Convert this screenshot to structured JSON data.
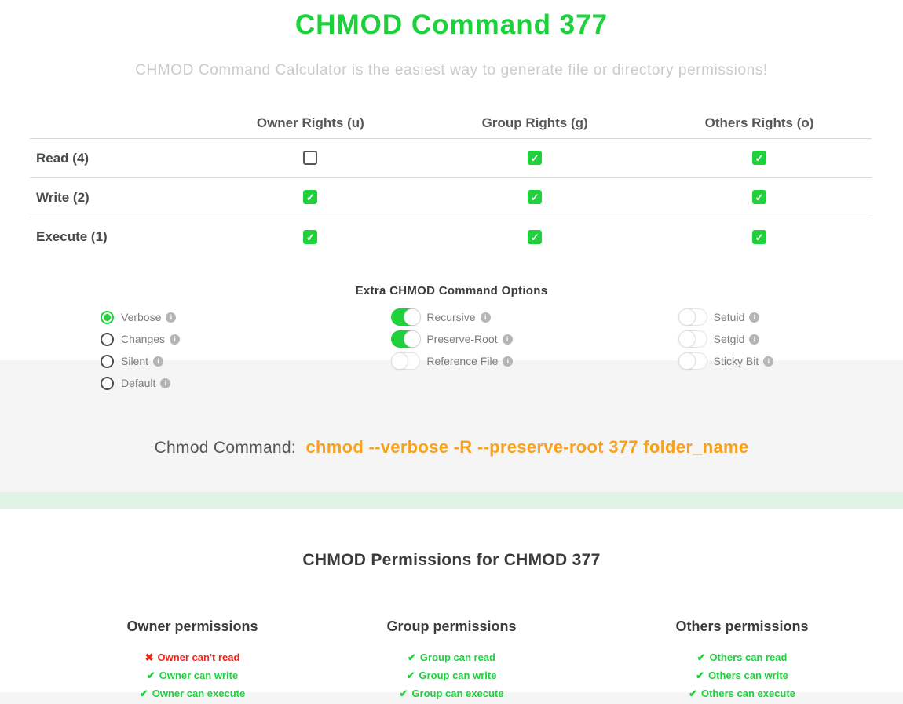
{
  "page": {
    "title": "CHMOD Command 377",
    "subtitle": "CHMOD Command Calculator is the easiest way to generate file or directory permissions!"
  },
  "colors": {
    "accent_green": "#1fd23c",
    "command_orange": "#f9a11b",
    "denied_red": "#f0261a",
    "section_gray": "#f4f5f4",
    "section_light_green": "#e1f3e6"
  },
  "icons": {
    "check": "✔",
    "cross": "✖",
    "info": "i",
    "checkbox_check": "✓"
  },
  "permissions_table": {
    "columns": [
      "Owner Rights (u)",
      "Group Rights (g)",
      "Others Rights (o)"
    ],
    "rows": [
      {
        "label": "Read (4)",
        "owner": false,
        "group": true,
        "others": true
      },
      {
        "label": "Write (2)",
        "owner": true,
        "group": true,
        "others": true
      },
      {
        "label": "Execute (1)",
        "owner": true,
        "group": true,
        "others": true
      }
    ]
  },
  "options": {
    "heading": "Extra CHMOD Command Options",
    "radio_group": [
      {
        "label": "Verbose",
        "selected": true
      },
      {
        "label": "Changes",
        "selected": false
      },
      {
        "label": "Silent",
        "selected": false
      },
      {
        "label": "Default",
        "selected": false
      }
    ],
    "toggles_middle": [
      {
        "label": "Recursive",
        "on": true
      },
      {
        "label": "Preserve-Root",
        "on": true
      },
      {
        "label": "Reference File",
        "on": false
      }
    ],
    "toggles_right": [
      {
        "label": "Setuid",
        "on": false
      },
      {
        "label": "Setgid",
        "on": false
      },
      {
        "label": "Sticky Bit",
        "on": false
      }
    ]
  },
  "command": {
    "label": "Chmod Command:",
    "value": "chmod --verbose -R --preserve-root 377 folder_name"
  },
  "result": {
    "heading": "CHMOD Permissions for CHMOD 377",
    "groups": [
      {
        "title": "Owner permissions",
        "items": [
          {
            "text": "Owner can't read",
            "allowed": false
          },
          {
            "text": "Owner can write",
            "allowed": true
          },
          {
            "text": "Owner can execute",
            "allowed": true
          }
        ]
      },
      {
        "title": "Group permissions",
        "items": [
          {
            "text": "Group can read",
            "allowed": true
          },
          {
            "text": "Group can write",
            "allowed": true
          },
          {
            "text": "Group can execute",
            "allowed": true
          }
        ]
      },
      {
        "title": "Others permissions",
        "items": [
          {
            "text": "Others can read",
            "allowed": true
          },
          {
            "text": "Others can write",
            "allowed": true
          },
          {
            "text": "Others can execute",
            "allowed": true
          }
        ]
      }
    ]
  }
}
